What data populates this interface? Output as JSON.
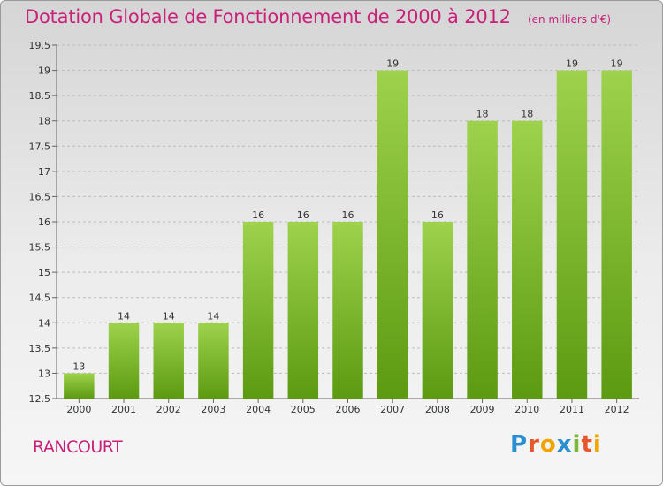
{
  "title": "Dotation Globale de Fonctionnement de 2000 à 2012",
  "unit_label": "(en milliers d'€)",
  "town": "RANCOURT",
  "logo": {
    "text": "Proxiti",
    "letters": [
      {
        "ch": "P",
        "color": "#2a8fd0"
      },
      {
        "ch": "r",
        "color": "#e8572a"
      },
      {
        "ch": "o",
        "color": "#f0a500"
      },
      {
        "ch": "x",
        "color": "#2a8fd0"
      },
      {
        "ch": "i",
        "color": "#7bb83a"
      },
      {
        "ch": "t",
        "color": "#e8572a"
      },
      {
        "ch": "i",
        "color": "#f0a500"
      }
    ]
  },
  "colors": {
    "title": "#c8217a",
    "bar_top": "#9ed24c",
    "bar_bottom": "#5c9a12",
    "grid": "#bbbbbb"
  },
  "chart_data": {
    "type": "bar",
    "categories": [
      "2000",
      "2001",
      "2002",
      "2003",
      "2004",
      "2005",
      "2006",
      "2007",
      "2008",
      "2009",
      "2010",
      "2011",
      "2012"
    ],
    "values": [
      13,
      14,
      14,
      14,
      16,
      16,
      16,
      19,
      16,
      18,
      18,
      19,
      19
    ],
    "value_labels": [
      "13",
      "14",
      "14",
      "14",
      "16",
      "16",
      "16",
      "19",
      "16",
      "18",
      "18",
      "19",
      "19"
    ],
    "ylim": [
      12.5,
      19.5
    ],
    "yticks": [
      12.5,
      13,
      13.5,
      14,
      14.5,
      15,
      15.5,
      16,
      16.5,
      17,
      17.5,
      18,
      18.5,
      19,
      19.5
    ],
    "ytick_labels": [
      "12.5",
      "13",
      "13.5",
      "14",
      "14.5",
      "15",
      "15.5",
      "16",
      "16.5",
      "17",
      "17.5",
      "18",
      "18.5",
      "19",
      "19.5"
    ],
    "grid": true
  }
}
